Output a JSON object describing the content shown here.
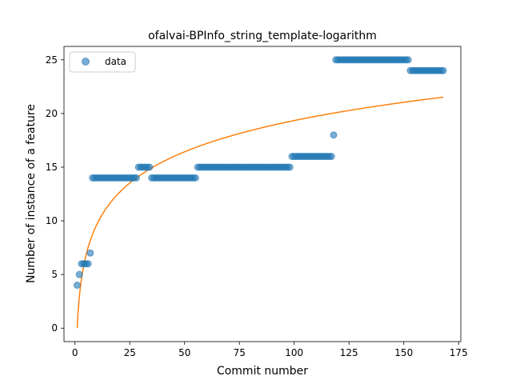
{
  "chart_data": {
    "type": "scatter",
    "title": "ofalvai-BPInfo_string_template-logarithm",
    "xlabel": "Commit number",
    "ylabel": "Number of instance of a feature",
    "xlim": [
      -5,
      176
    ],
    "ylim": [
      -1.25,
      26.25
    ],
    "xticks": [
      0,
      25,
      50,
      75,
      100,
      125,
      150,
      175
    ],
    "yticks": [
      0,
      5,
      10,
      15,
      20,
      25
    ],
    "legend": {
      "position": "top-left",
      "entries": [
        "data"
      ]
    },
    "grid": false,
    "series": [
      {
        "name": "data",
        "kind": "scatter",
        "color": "#1f77b4",
        "runs": [
          {
            "x_start": 1,
            "x_end": 1,
            "y": 4
          },
          {
            "x_start": 2,
            "x_end": 2,
            "y": 5
          },
          {
            "x_start": 3,
            "x_end": 6,
            "y": 6
          },
          {
            "x_start": 7,
            "x_end": 7,
            "y": 7
          },
          {
            "x_start": 8,
            "x_end": 28,
            "y": 14
          },
          {
            "x_start": 29,
            "x_end": 34,
            "y": 15
          },
          {
            "x_start": 35,
            "x_end": 55,
            "y": 14
          },
          {
            "x_start": 56,
            "x_end": 98,
            "y": 15
          },
          {
            "x_start": 99,
            "x_end": 117,
            "y": 16
          },
          {
            "x_start": 118,
            "x_end": 118,
            "y": 18
          },
          {
            "x_start": 119,
            "x_end": 152,
            "y": 25
          },
          {
            "x_start": 153,
            "x_end": 168,
            "y": 24
          }
        ]
      },
      {
        "name": "",
        "kind": "line",
        "color": "#ff7f0e",
        "model": "logarithm",
        "a": 4.2,
        "b": 0,
        "x_range": [
          1,
          168
        ]
      }
    ]
  }
}
